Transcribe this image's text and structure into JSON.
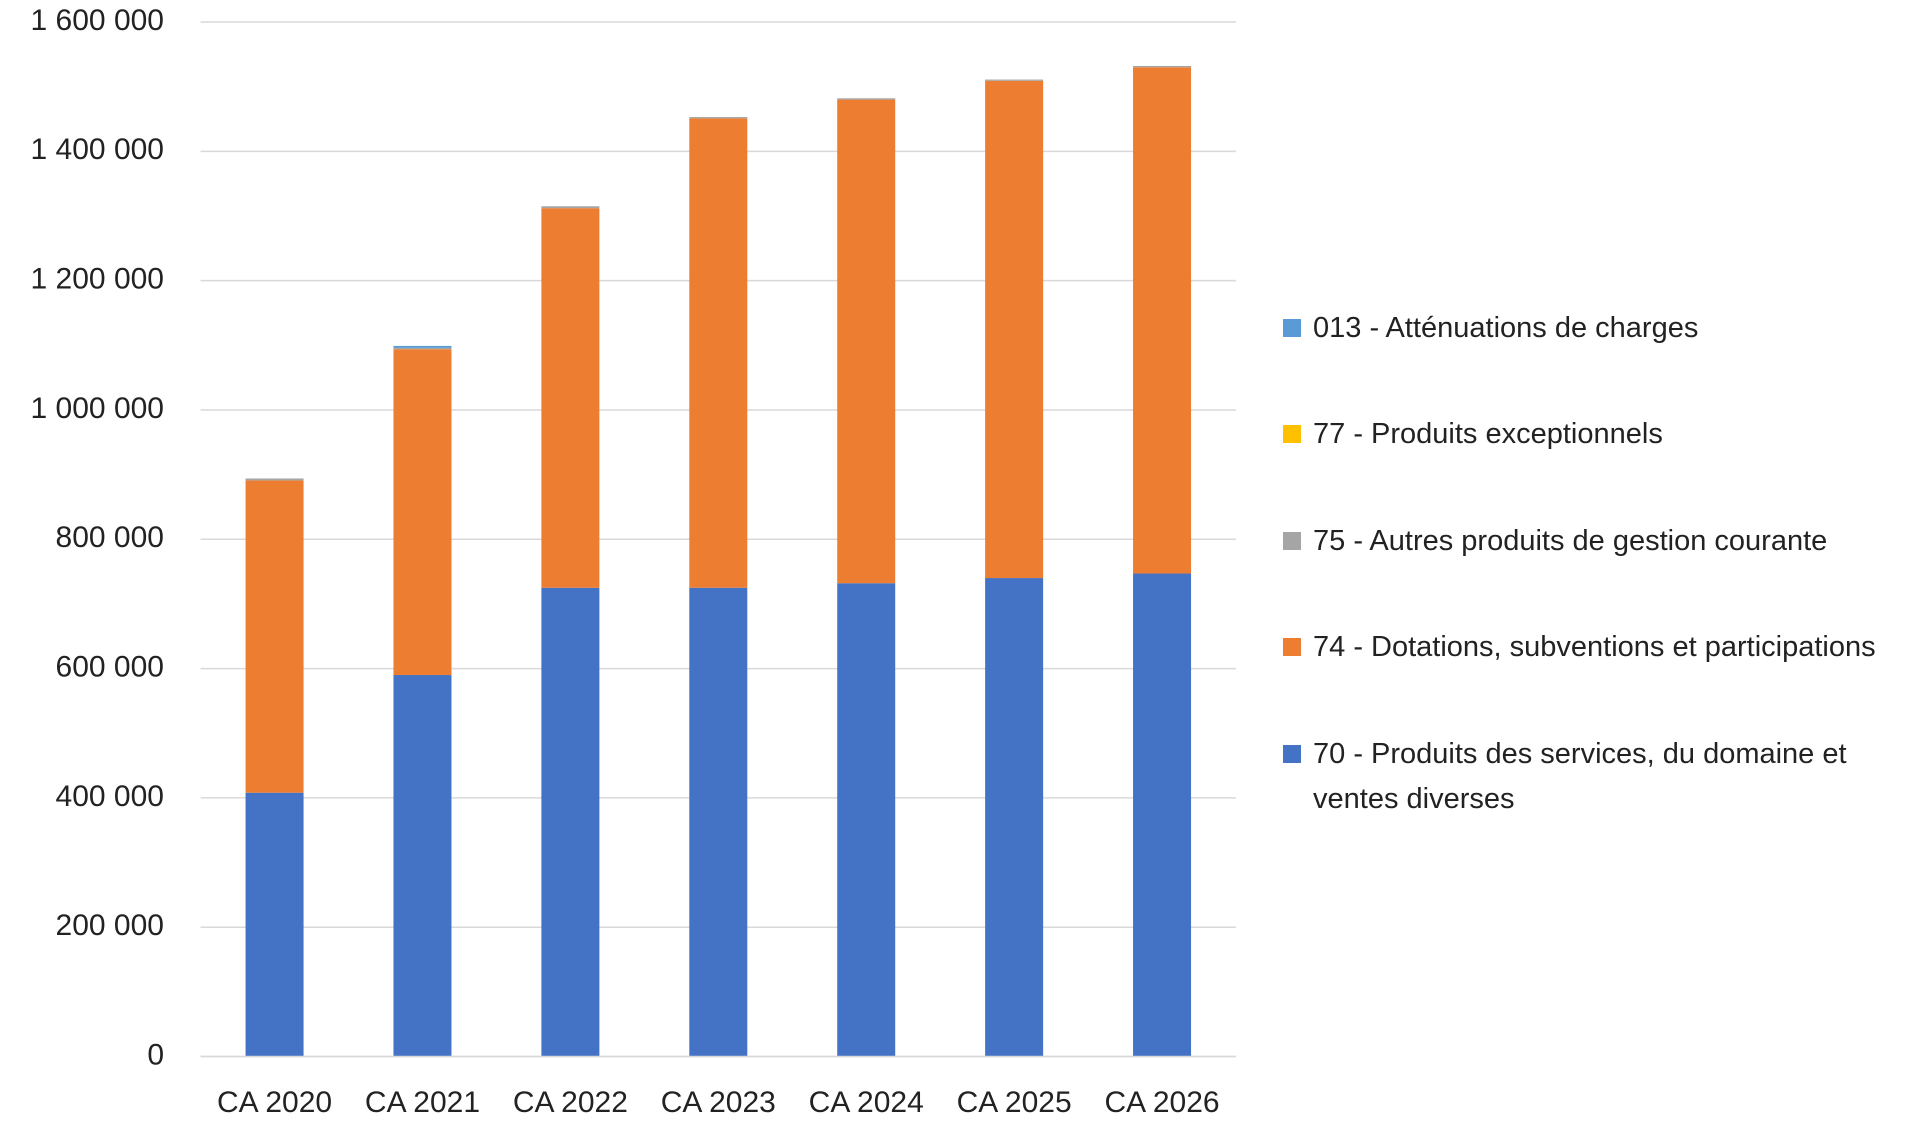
{
  "chart_data": {
    "type": "stacked-bar",
    "categories": [
      "CA 2020",
      "CA 2021",
      "CA 2022",
      "CA 2023",
      "CA 2024",
      "CA 2025",
      "CA 2026"
    ],
    "series": [
      {
        "name": "70 - Produits des services, du domaine et ventes diverses",
        "color": "#4472c4",
        "values": [
          408000,
          590000,
          725000,
          725000,
          732000,
          740000,
          747000
        ]
      },
      {
        "name": "74 - Dotations, subventions et participations",
        "color": "#ed7d31",
        "values": [
          483000,
          504000,
          587000,
          726000,
          748000,
          769000,
          783000
        ]
      },
      {
        "name": "75 - Autres produits de gestion courante",
        "color": "#a5a5a5",
        "values": [
          3000,
          2000,
          3000,
          2000,
          2000,
          2000,
          2000
        ]
      },
      {
        "name": "77 - Produits exceptionnels",
        "color": "#ffc000",
        "values": [
          0,
          0,
          0,
          0,
          0,
          0,
          0
        ]
      },
      {
        "name": "013 - Atténuations de charges",
        "color": "#5b9bd5",
        "values": [
          0,
          3000,
          0,
          0,
          0,
          0,
          0
        ]
      }
    ],
    "ylim": [
      0,
      1600000
    ],
    "yticks": [
      0,
      {
        "value": 200000,
        "label": "200 000"
      },
      {
        "value": 400000,
        "label": "400 000"
      },
      {
        "value": 600000,
        "label": "600 000"
      },
      {
        "value": 800000,
        "label": "800 000"
      },
      {
        "value": 1000000,
        "label": "1 000 000"
      },
      {
        "value": 1200000,
        "label": "1 200 000"
      },
      {
        "value": 1400000,
        "label": "1 400 000"
      },
      {
        "value": 1600000,
        "label": "1 600 000"
      }
    ],
    "grid": true,
    "legend": "right"
  }
}
